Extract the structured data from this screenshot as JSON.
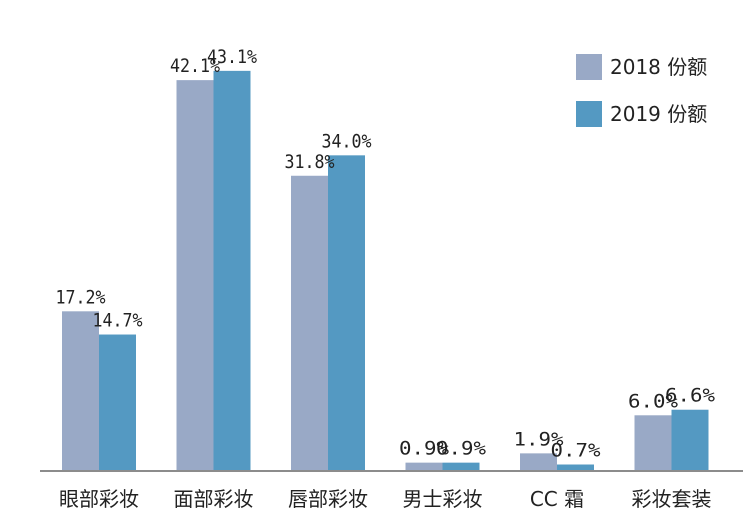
{
  "chart_data": {
    "type": "bar",
    "categories": [
      "眼部彩妆",
      "面部彩妆",
      "唇部彩妆",
      "男士彩妆",
      "CC 霜",
      "彩妆套装"
    ],
    "series": [
      {
        "name": "2018 份额",
        "values": [
          17.2,
          42.1,
          31.8,
          0.9,
          1.9,
          6.0
        ],
        "labels": [
          "17.2%",
          "42.1%",
          "31.8%",
          "0.9%",
          "1.9%",
          "6.0%"
        ],
        "color": "#99a9c6"
      },
      {
        "name": "2019 份额",
        "values": [
          14.7,
          43.1,
          34.0,
          0.9,
          0.7,
          6.6
        ],
        "labels": [
          "14.7%",
          "43.1%",
          "34.0%",
          "0.9%",
          "0.7%",
          "6.6%"
        ],
        "color": "#5499c2"
      }
    ],
    "unit": "%",
    "ylim": [
      0,
      47.5
    ],
    "grid": false,
    "legend": "top-right",
    "baseline_color": "#8c8c8c"
  }
}
